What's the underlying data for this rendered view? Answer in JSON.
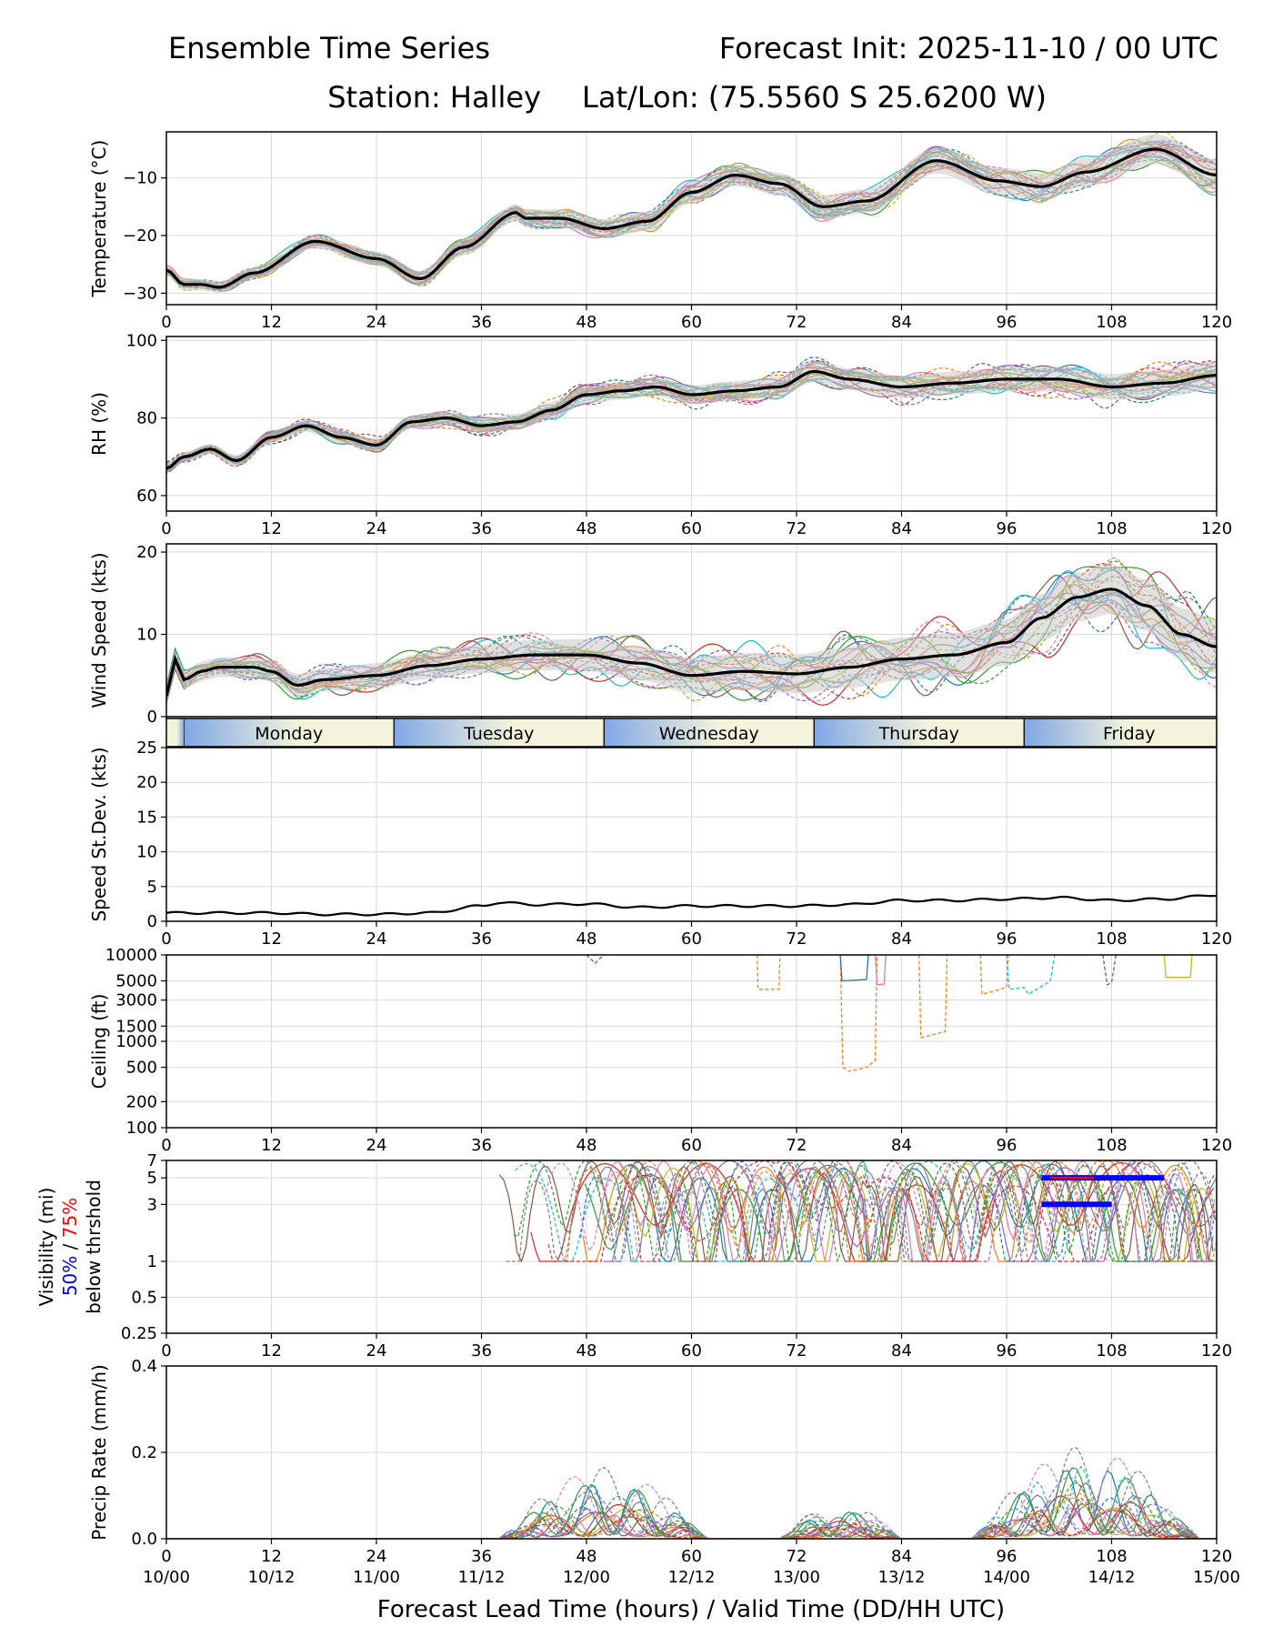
{
  "header": {
    "left_title": "Ensemble Time Series",
    "right_title": "Forecast Init: 2025-11-10 / 00 UTC",
    "station": "Station: Halley",
    "latlon": "Lat/Lon: (75.5560 S 25.6200 W)"
  },
  "colors": {
    "mean": "#000000",
    "spread": "#c8c8c8",
    "members": [
      "#1f77b4",
      "#ff7f0e",
      "#2ca02c",
      "#d62728",
      "#9467bd",
      "#8c564b",
      "#e377c2",
      "#7f7f7f",
      "#bcbd22",
      "#17becf"
    ],
    "day_band_left": "#7fa7e6",
    "day_band_right": "#f4f4dc",
    "vis50": "#0000ff",
    "vis75": "#ff0000"
  },
  "xaxis": {
    "lead_ticks": [
      "0",
      "12",
      "24",
      "36",
      "48",
      "60",
      "72",
      "84",
      "96",
      "108",
      "120"
    ],
    "valid_ticks": [
      "10/00",
      "10/12",
      "11/00",
      "11/12",
      "12/00",
      "12/12",
      "13/00",
      "13/12",
      "14/00",
      "14/12",
      "15/00"
    ],
    "label": "Forecast Lead Time (hours) / Valid Time (DD/HH UTC)"
  },
  "days": [
    "Monday",
    "Tuesday",
    "Wednesday",
    "Thursday",
    "Friday"
  ],
  "chart_data": [
    {
      "type": "line",
      "id": "temp",
      "ylabel": "Temperature (°C)",
      "ylim": [
        -32,
        -2
      ],
      "yticks": [
        "−10",
        "−20",
        "−30"
      ],
      "ytick_values": [
        -10,
        -20,
        -30
      ],
      "mean": {
        "x": [
          0,
          2,
          4,
          6,
          10,
          17,
          24,
          29,
          34,
          40,
          41,
          45,
          50,
          55,
          60,
          65,
          70,
          75,
          80,
          88,
          95,
          100,
          105,
          113,
          120
        ],
        "y": [
          -26,
          -28.5,
          -28.5,
          -29,
          -26.5,
          -21,
          -24,
          -27.5,
          -22,
          -16,
          -17,
          -17,
          -18.8,
          -17.5,
          -12.5,
          -9.5,
          -11,
          -15,
          -14,
          -7,
          -10.5,
          -11.5,
          -9,
          -5,
          -9.5
        ]
      },
      "spread": 1.5
    },
    {
      "type": "line",
      "id": "rh",
      "ylabel": "RH (%)",
      "ylim": [
        56,
        101
      ],
      "yticks": [
        "100",
        "80",
        "60"
      ],
      "ytick_values": [
        100,
        80,
        60
      ],
      "mean": {
        "x": [
          0,
          2,
          5,
          8,
          12,
          16,
          20,
          24,
          28,
          32,
          36,
          40,
          44,
          48,
          52,
          56,
          60,
          65,
          70,
          74,
          78,
          84,
          90,
          96,
          102,
          108,
          114,
          120
        ],
        "y": [
          67,
          70,
          72,
          69,
          75,
          78,
          75,
          73,
          79,
          80,
          78,
          79,
          82,
          86,
          87,
          88,
          86,
          87,
          88,
          92,
          90,
          88,
          89,
          90,
          90,
          88,
          89,
          91
        ]
      },
      "spread": 2.0
    },
    {
      "type": "line",
      "id": "wind",
      "ylabel": "Wind Speed (kts)",
      "ylim": [
        0,
        21
      ],
      "yticks": [
        "20",
        "10",
        "0"
      ],
      "ytick_values": [
        20,
        10,
        0
      ],
      "mean": {
        "x": [
          0,
          1,
          2,
          4,
          6,
          10,
          12,
          15,
          18,
          24,
          30,
          36,
          42,
          48,
          54,
          60,
          66,
          72,
          78,
          84,
          90,
          96,
          100,
          104,
          108,
          112,
          116,
          120
        ],
        "y": [
          2.5,
          7,
          4.5,
          5.5,
          6,
          6,
          5.5,
          3.8,
          4.5,
          5,
          6.2,
          7,
          7.5,
          7.5,
          6.5,
          5,
          5.5,
          5.2,
          6,
          7,
          7.5,
          9,
          12,
          14.5,
          15.5,
          13.5,
          10,
          8.5
        ]
      },
      "spread": 1.8
    },
    {
      "type": "line",
      "id": "sd",
      "ylabel": "Speed St.Dev. (kts)",
      "ylim": [
        0,
        25
      ],
      "yticks": [
        "25",
        "20",
        "15",
        "10",
        "5",
        "0"
      ],
      "ytick_values": [
        25,
        20,
        15,
        10,
        5,
        0
      ],
      "mean": {
        "x": [
          0,
          6,
          12,
          18,
          24,
          30,
          36,
          38,
          42,
          48,
          54,
          60,
          66,
          72,
          78,
          84,
          90,
          96,
          102,
          108,
          114,
          120
        ],
        "y": [
          1.2,
          1.2,
          1.2,
          1.0,
          1.0,
          1.2,
          2.2,
          2.7,
          2.4,
          2.5,
          2.0,
          2.2,
          2.2,
          2.2,
          2.4,
          3.0,
          3.0,
          3.2,
          3.4,
          3.0,
          3.2,
          3.8
        ]
      }
    },
    {
      "type": "line",
      "id": "ceiling",
      "ylabel": "Ceiling (ft)",
      "scale": "log",
      "ylim": [
        100,
        10000
      ],
      "yticks": [
        "10000",
        "5000",
        "3000",
        "1500",
        "1000",
        "500",
        "200",
        "100"
      ],
      "ytick_values": [
        10000,
        5000,
        3000,
        1500,
        1000,
        500,
        200,
        100
      ],
      "segments": [
        {
          "member": 1,
          "x": [
            67.5,
            67.6,
            70,
            70.1
          ],
          "y": [
            10000,
            4000,
            4000,
            10000
          ]
        },
        {
          "member": 1,
          "x": [
            77,
            77.3,
            78,
            80,
            81,
            81.2
          ],
          "y": [
            10000,
            500,
            450,
            500,
            600,
            10000
          ]
        },
        {
          "member": 1,
          "x": [
            86,
            86.2,
            89,
            89.2
          ],
          "y": [
            10000,
            1100,
            1300,
            10000
          ]
        },
        {
          "member": 1,
          "x": [
            93,
            93.2,
            96,
            96.2
          ],
          "y": [
            10000,
            3500,
            4200,
            10000
          ]
        },
        {
          "member": 0,
          "x": [
            77,
            77.2,
            80,
            80.2
          ],
          "y": [
            10000,
            5000,
            5200,
            10000
          ]
        },
        {
          "member": 9,
          "x": [
            96,
            96.3,
            98,
            98.5,
            101,
            101.5
          ],
          "y": [
            10000,
            4000,
            4200,
            3500,
            5000,
            10000
          ]
        },
        {
          "member": 5,
          "x": [
            48,
            49,
            49.5,
            50
          ],
          "y": [
            10000,
            8000,
            9000,
            10000
          ]
        },
        {
          "member": 6,
          "x": [
            81,
            81.2,
            82,
            82.2
          ],
          "y": [
            10000,
            4500,
            4600,
            10000
          ]
        },
        {
          "member": 8,
          "x": [
            114,
            114.2,
            117,
            117.2
          ],
          "y": [
            10000,
            5500,
            5500,
            10000
          ]
        },
        {
          "member": 5,
          "x": [
            107,
            107.5,
            108,
            108.5
          ],
          "y": [
            10000,
            4500,
            4800,
            10000
          ]
        }
      ]
    },
    {
      "type": "line",
      "id": "vis",
      "ylabel": "Visibility (mi)",
      "ylabel_50": "50%",
      "ylabel_75": "75%",
      "ylabel_below": "below thrshold",
      "scale": "log",
      "ylim": [
        0.25,
        7
      ],
      "yticks": [
        "7",
        "5",
        "3",
        "1",
        "0.5",
        "0.25"
      ],
      "ytick_values": [
        7,
        5,
        3,
        1,
        0.5,
        0.25
      ],
      "below_50": [
        {
          "x": [
            100,
            114
          ],
          "y": 5
        },
        {
          "x": [
            100,
            108
          ],
          "y": 3
        }
      ],
      "below_75": [
        {
          "x": [
            101,
            106
          ],
          "y": 5
        }
      ]
    },
    {
      "type": "line",
      "id": "precip",
      "ylabel": "Precip Rate (mm/h)",
      "ylim": [
        0,
        0.4
      ],
      "yticks": [
        "0.4",
        "0.2",
        "0.0"
      ],
      "ytick_values": [
        0.4,
        0.2,
        0.0
      ]
    }
  ]
}
